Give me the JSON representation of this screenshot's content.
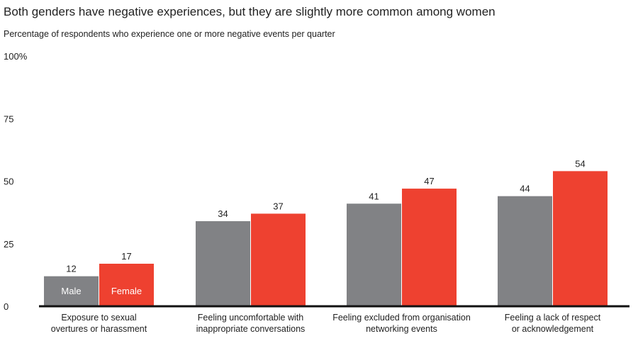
{
  "chart_data": {
    "type": "bar",
    "title": "Both genders have negative experiences, but they are slightly more common among women",
    "subtitle": "Percentage of respondents who experience one or more negative events per quarter",
    "xlabel": "",
    "ylabel": "",
    "ylim": [
      0,
      100
    ],
    "yticks": [
      {
        "value": 0,
        "label": "0"
      },
      {
        "value": 25,
        "label": "25"
      },
      {
        "value": 50,
        "label": "50"
      },
      {
        "value": 75,
        "label": "75"
      },
      {
        "value": 100,
        "label": "100%"
      }
    ],
    "grid": false,
    "legend": "in-bar labels on first group",
    "categories": [
      [
        "Exposure to sexual",
        "overtures or harassment"
      ],
      [
        "Feeling uncomfortable with",
        "inappropriate conversations"
      ],
      [
        "Feeling excluded from organisation",
        "networking events"
      ],
      [
        "Feeling a lack of respect",
        "or acknowledgement"
      ]
    ],
    "series": [
      {
        "name": "Male",
        "color": "#818285",
        "values": [
          12,
          34,
          41,
          44
        ]
      },
      {
        "name": "Female",
        "color": "#ee4130",
        "values": [
          17,
          37,
          47,
          54
        ]
      }
    ],
    "value_labels": [
      [
        "12",
        "34",
        "41",
        "44"
      ],
      [
        "17",
        "37",
        "47",
        "54"
      ]
    ]
  }
}
